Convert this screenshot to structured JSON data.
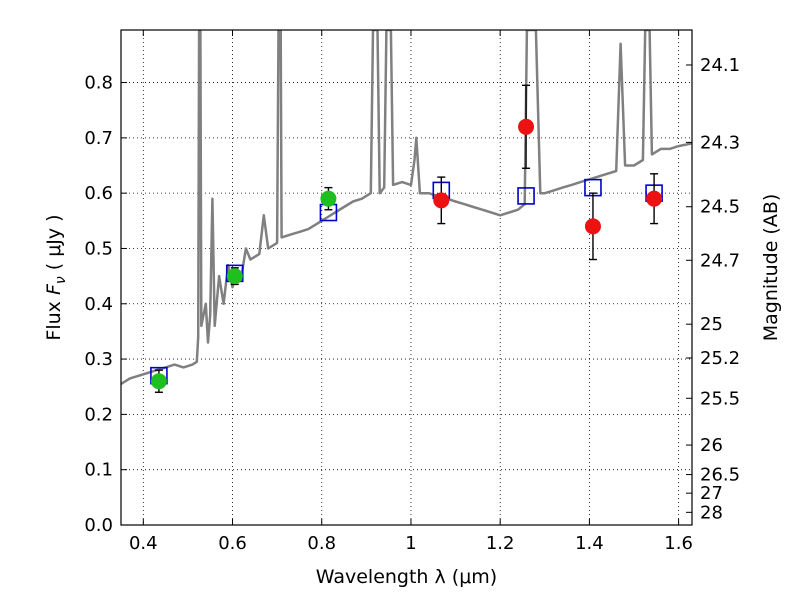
{
  "chart_data": {
    "type": "scatter",
    "xlabel": "Wavelength  λ (μm)",
    "ylabel": {
      "prefix": "Flux  ",
      "symbol": "F",
      "subscript": "ν",
      "unit": "  ( μJy )"
    },
    "y2label": "Magnitude (AB)",
    "xlim": [
      0.35,
      1.63
    ],
    "ylim": [
      0.0,
      0.895
    ],
    "grid": true,
    "x_ticks": [
      {
        "value": 0.4,
        "label": "0.4"
      },
      {
        "value": 0.6,
        "label": "0.6"
      },
      {
        "value": 0.8,
        "label": "0.8"
      },
      {
        "value": 1.0,
        "label": "1"
      },
      {
        "value": 1.2,
        "label": "1.2"
      },
      {
        "value": 1.4,
        "label": "1.4"
      },
      {
        "value": 1.6,
        "label": "1.6"
      }
    ],
    "y_ticks": [
      {
        "value": 0.0,
        "label": "0.0"
      },
      {
        "value": 0.1,
        "label": "0.1"
      },
      {
        "value": 0.2,
        "label": "0.2"
      },
      {
        "value": 0.3,
        "label": "0.3"
      },
      {
        "value": 0.4,
        "label": "0.4"
      },
      {
        "value": 0.5,
        "label": "0.5"
      },
      {
        "value": 0.6,
        "label": "0.6"
      },
      {
        "value": 0.7,
        "label": "0.7"
      },
      {
        "value": 0.8,
        "label": "0.8"
      }
    ],
    "y2_ticks": [
      {
        "magnitude": 24.1,
        "label": "24.1"
      },
      {
        "magnitude": 24.3,
        "label": "24.3"
      },
      {
        "magnitude": 24.5,
        "label": "24.5"
      },
      {
        "magnitude": 24.7,
        "label": "24.7"
      },
      {
        "magnitude": 25.0,
        "label": "25"
      },
      {
        "magnitude": 25.2,
        "label": "25.2"
      },
      {
        "magnitude": 25.5,
        "label": "25.5"
      },
      {
        "magnitude": 26.0,
        "label": "26"
      },
      {
        "magnitude": 26.5,
        "label": "26.5"
      },
      {
        "magnitude": 27.0,
        "label": "27"
      },
      {
        "magnitude": 28.0,
        "label": "28"
      }
    ],
    "series": [
      {
        "type": "line",
        "color": "#808080",
        "points": [
          [
            0.35,
            0.255
          ],
          [
            0.37,
            0.265
          ],
          [
            0.39,
            0.27
          ],
          [
            0.41,
            0.275
          ],
          [
            0.43,
            0.28
          ],
          [
            0.45,
            0.285
          ],
          [
            0.47,
            0.29
          ],
          [
            0.49,
            0.285
          ],
          [
            0.51,
            0.29
          ],
          [
            0.52,
            0.295
          ],
          [
            0.523,
            0.34
          ],
          [
            0.525,
            0.895
          ],
          [
            0.528,
            0.895
          ],
          [
            0.53,
            0.36
          ],
          [
            0.54,
            0.4
          ],
          [
            0.545,
            0.33
          ],
          [
            0.55,
            0.38
          ],
          [
            0.555,
            0.59
          ],
          [
            0.56,
            0.36
          ],
          [
            0.57,
            0.45
          ],
          [
            0.58,
            0.4
          ],
          [
            0.59,
            0.47
          ],
          [
            0.6,
            0.43
          ],
          [
            0.61,
            0.46
          ],
          [
            0.62,
            0.45
          ],
          [
            0.63,
            0.5
          ],
          [
            0.64,
            0.48
          ],
          [
            0.66,
            0.49
          ],
          [
            0.67,
            0.56
          ],
          [
            0.68,
            0.5
          ],
          [
            0.7,
            0.51
          ],
          [
            0.703,
            0.895
          ],
          [
            0.708,
            0.895
          ],
          [
            0.71,
            0.52
          ],
          [
            0.73,
            0.525
          ],
          [
            0.75,
            0.53
          ],
          [
            0.77,
            0.535
          ],
          [
            0.79,
            0.545
          ],
          [
            0.81,
            0.555
          ],
          [
            0.83,
            0.565
          ],
          [
            0.85,
            0.575
          ],
          [
            0.87,
            0.585
          ],
          [
            0.89,
            0.59
          ],
          [
            0.91,
            0.6
          ],
          [
            0.915,
            0.895
          ],
          [
            0.925,
            0.895
          ],
          [
            0.93,
            0.6
          ],
          [
            0.94,
            0.61
          ],
          [
            0.945,
            0.895
          ],
          [
            0.955,
            0.895
          ],
          [
            0.96,
            0.615
          ],
          [
            0.98,
            0.62
          ],
          [
            1.0,
            0.615
          ],
          [
            1.008,
            0.66
          ],
          [
            1.012,
            0.7
          ],
          [
            1.02,
            0.6
          ],
          [
            1.04,
            0.6
          ],
          [
            1.06,
            0.595
          ],
          [
            1.08,
            0.59
          ],
          [
            1.1,
            0.585
          ],
          [
            1.12,
            0.58
          ],
          [
            1.14,
            0.575
          ],
          [
            1.16,
            0.57
          ],
          [
            1.18,
            0.565
          ],
          [
            1.2,
            0.56
          ],
          [
            1.22,
            0.565
          ],
          [
            1.24,
            0.57
          ],
          [
            1.255,
            0.58
          ],
          [
            1.26,
            0.895
          ],
          [
            1.28,
            0.895
          ],
          [
            1.29,
            0.6
          ],
          [
            1.3,
            0.6
          ],
          [
            1.32,
            0.605
          ],
          [
            1.34,
            0.61
          ],
          [
            1.36,
            0.615
          ],
          [
            1.38,
            0.62
          ],
          [
            1.4,
            0.625
          ],
          [
            1.42,
            0.63
          ],
          [
            1.44,
            0.635
          ],
          [
            1.46,
            0.64
          ],
          [
            1.47,
            0.87
          ],
          [
            1.48,
            0.65
          ],
          [
            1.5,
            0.65
          ],
          [
            1.52,
            0.66
          ],
          [
            1.525,
            0.895
          ],
          [
            1.535,
            0.895
          ],
          [
            1.54,
            0.67
          ],
          [
            1.56,
            0.68
          ],
          [
            1.58,
            0.68
          ],
          [
            1.6,
            0.685
          ],
          [
            1.63,
            0.69
          ]
        ]
      },
      {
        "type": "open-square",
        "color": "#0000cc",
        "points": [
          [
            0.435,
            0.27
          ],
          [
            0.605,
            0.455
          ],
          [
            0.815,
            0.565
          ],
          [
            1.068,
            0.605
          ],
          [
            1.258,
            0.595
          ],
          [
            1.408,
            0.61
          ],
          [
            1.545,
            0.6
          ]
        ]
      },
      {
        "type": "filled-circle",
        "color": "#1fbf1f",
        "points": [
          {
            "x": 0.435,
            "y": 0.26,
            "err": 0.02
          },
          {
            "x": 0.605,
            "y": 0.45,
            "err": 0.015
          },
          {
            "x": 0.815,
            "y": 0.59,
            "err": 0.02
          }
        ]
      },
      {
        "type": "filled-circle",
        "color": "#ee1111",
        "points": [
          {
            "x": 1.068,
            "y": 0.587,
            "err": 0.042
          },
          {
            "x": 1.258,
            "y": 0.72,
            "err": 0.075
          },
          {
            "x": 1.408,
            "y": 0.54,
            "err": 0.06
          },
          {
            "x": 1.545,
            "y": 0.59,
            "err": 0.045
          }
        ]
      }
    ]
  }
}
